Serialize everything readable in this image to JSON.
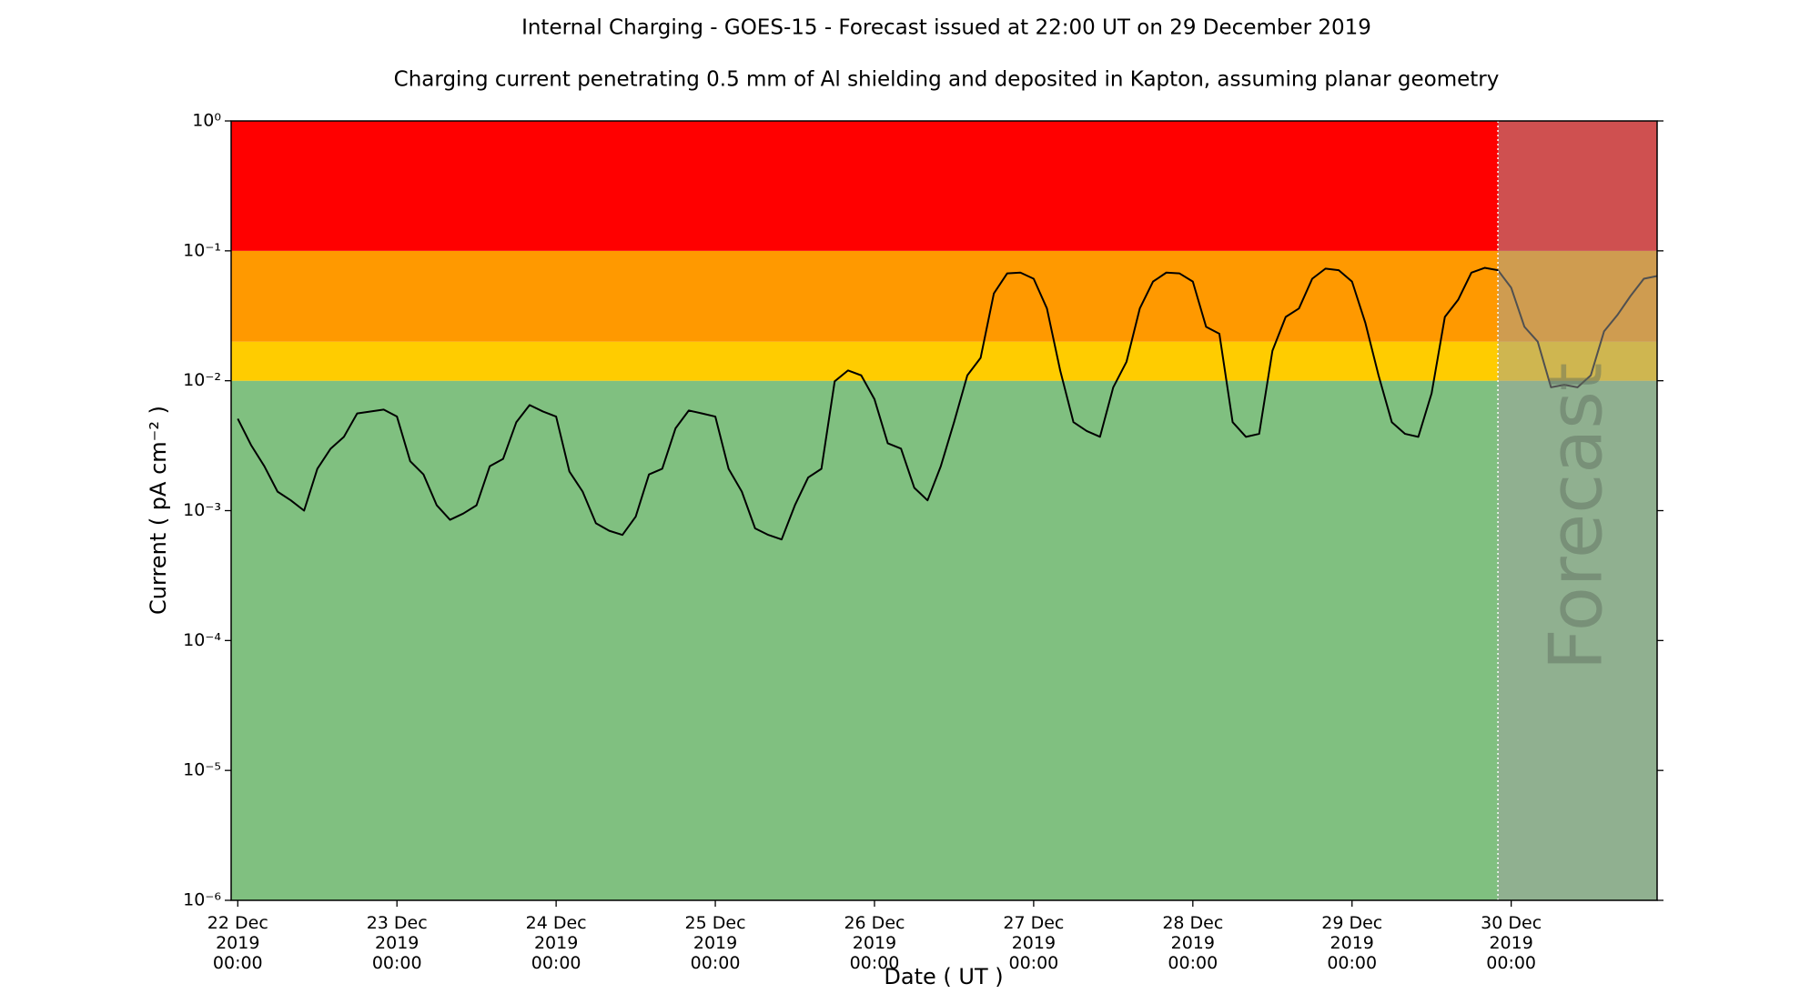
{
  "chart_data": {
    "type": "line",
    "title": "Internal Charging - GOES-15 - Forecast issued at 22:00 UT on 29 December 2019",
    "subtitle": "Charging current penetrating 0.5 mm of Al shielding and deposited in Kapton, assuming planar geometry",
    "xlabel": "Date ( UT )",
    "ylabel": "Current ( pA cm⁻² )",
    "log_y": true,
    "color": "#000000",
    "xlim": [
      "2019-12-21 23:00",
      "2019-12-30 22:00"
    ],
    "ylim": [
      1e-06,
      1
    ],
    "yticks": [
      {
        "value": 1e-06,
        "label": "10⁻⁶"
      },
      {
        "value": 1e-05,
        "label": "10⁻⁵"
      },
      {
        "value": 0.0001,
        "label": "10⁻⁴"
      },
      {
        "value": 0.001,
        "label": "10⁻³"
      },
      {
        "value": 0.01,
        "label": "10⁻²"
      },
      {
        "value": 0.1,
        "label": "10⁻¹"
      },
      {
        "value": 1,
        "label": "10⁰"
      }
    ],
    "xticks": [
      {
        "value": "2019-12-22 00:00",
        "label": "22 Dec\n2019\n00:00"
      },
      {
        "value": "2019-12-23 00:00",
        "label": "23 Dec\n2019\n00:00"
      },
      {
        "value": "2019-12-24 00:00",
        "label": "24 Dec\n2019\n00:00"
      },
      {
        "value": "2019-12-25 00:00",
        "label": "25 Dec\n2019\n00:00"
      },
      {
        "value": "2019-12-26 00:00",
        "label": "26 Dec\n2019\n00:00"
      },
      {
        "value": "2019-12-27 00:00",
        "label": "27 Dec\n2019\n00:00"
      },
      {
        "value": "2019-12-28 00:00",
        "label": "28 Dec\n2019\n00:00"
      },
      {
        "value": "2019-12-29 00:00",
        "label": "29 Dec\n2019\n00:00"
      },
      {
        "value": "2019-12-30 00:00",
        "label": "30 Dec\n2019\n00:00"
      }
    ],
    "bands": [
      {
        "from": 1e-06,
        "to": 0.01,
        "color": "#80c080"
      },
      {
        "from": 0.01,
        "to": 0.02,
        "color": "#ffcc00"
      },
      {
        "from": 0.02,
        "to": 0.1,
        "color": "#ff9900"
      },
      {
        "from": 0.1,
        "to": 1,
        "color": "#ff0000"
      }
    ],
    "forecast": {
      "label": "Forecast",
      "start": "2019-12-29 22:00",
      "color": "#a0a0a0"
    },
    "x": [
      "2019-12-22 00:00",
      "2019-12-22 02:00",
      "2019-12-22 04:00",
      "2019-12-22 06:00",
      "2019-12-22 08:00",
      "2019-12-22 10:00",
      "2019-12-22 12:00",
      "2019-12-22 14:00",
      "2019-12-22 16:00",
      "2019-12-22 18:00",
      "2019-12-22 20:00",
      "2019-12-22 22:00",
      "2019-12-23 00:00",
      "2019-12-23 02:00",
      "2019-12-23 04:00",
      "2019-12-23 06:00",
      "2019-12-23 08:00",
      "2019-12-23 10:00",
      "2019-12-23 12:00",
      "2019-12-23 14:00",
      "2019-12-23 16:00",
      "2019-12-23 18:00",
      "2019-12-23 20:00",
      "2019-12-23 22:00",
      "2019-12-24 00:00",
      "2019-12-24 02:00",
      "2019-12-24 04:00",
      "2019-12-24 06:00",
      "2019-12-24 08:00",
      "2019-12-24 10:00",
      "2019-12-24 12:00",
      "2019-12-24 14:00",
      "2019-12-24 16:00",
      "2019-12-24 18:00",
      "2019-12-24 20:00",
      "2019-12-24 22:00",
      "2019-12-25 00:00",
      "2019-12-25 02:00",
      "2019-12-25 04:00",
      "2019-12-25 06:00",
      "2019-12-25 08:00",
      "2019-12-25 10:00",
      "2019-12-25 12:00",
      "2019-12-25 14:00",
      "2019-12-25 16:00",
      "2019-12-25 18:00",
      "2019-12-25 20:00",
      "2019-12-25 22:00",
      "2019-12-26 00:00",
      "2019-12-26 02:00",
      "2019-12-26 04:00",
      "2019-12-26 06:00",
      "2019-12-26 08:00",
      "2019-12-26 10:00",
      "2019-12-26 12:00",
      "2019-12-26 14:00",
      "2019-12-26 16:00",
      "2019-12-26 18:00",
      "2019-12-26 20:00",
      "2019-12-26 22:00",
      "2019-12-27 00:00",
      "2019-12-27 02:00",
      "2019-12-27 04:00",
      "2019-12-27 06:00",
      "2019-12-27 08:00",
      "2019-12-27 10:00",
      "2019-12-27 12:00",
      "2019-12-27 14:00",
      "2019-12-27 16:00",
      "2019-12-27 18:00",
      "2019-12-27 20:00",
      "2019-12-27 22:00",
      "2019-12-28 00:00",
      "2019-12-28 02:00",
      "2019-12-28 04:00",
      "2019-12-28 06:00",
      "2019-12-28 08:00",
      "2019-12-28 10:00",
      "2019-12-28 12:00",
      "2019-12-28 14:00",
      "2019-12-28 16:00",
      "2019-12-28 18:00",
      "2019-12-28 20:00",
      "2019-12-28 22:00",
      "2019-12-29 00:00",
      "2019-12-29 02:00",
      "2019-12-29 04:00",
      "2019-12-29 06:00",
      "2019-12-29 08:00",
      "2019-12-29 10:00",
      "2019-12-29 12:00",
      "2019-12-29 14:00",
      "2019-12-29 16:00",
      "2019-12-29 18:00",
      "2019-12-29 20:00",
      "2019-12-29 22:00",
      "2019-12-30 00:00",
      "2019-12-30 02:00",
      "2019-12-30 04:00",
      "2019-12-30 06:00",
      "2019-12-30 08:00",
      "2019-12-30 10:00",
      "2019-12-30 12:00",
      "2019-12-30 14:00",
      "2019-12-30 16:00",
      "2019-12-30 18:00",
      "2019-12-30 20:00",
      "2019-12-30 22:00"
    ],
    "values": [
      0.0051,
      0.0032,
      0.0022,
      0.0014,
      0.0012,
      0.001,
      0.0021,
      0.003,
      0.0037,
      0.0056,
      0.0058,
      0.006,
      0.0053,
      0.0024,
      0.0019,
      0.0011,
      0.00085,
      0.00095,
      0.0011,
      0.0022,
      0.0025,
      0.0048,
      0.0065,
      0.0058,
      0.0053,
      0.002,
      0.0014,
      0.0008,
      0.0007,
      0.00065,
      0.0009,
      0.0019,
      0.0021,
      0.0043,
      0.0059,
      0.0056,
      0.0053,
      0.0021,
      0.0014,
      0.00073,
      0.00065,
      0.0006,
      0.0011,
      0.0018,
      0.0021,
      0.0099,
      0.012,
      0.011,
      0.0072,
      0.0033,
      0.003,
      0.0015,
      0.0012,
      0.0022,
      0.0048,
      0.011,
      0.015,
      0.047,
      0.067,
      0.068,
      0.061,
      0.036,
      0.012,
      0.0048,
      0.0041,
      0.0037,
      0.0089,
      0.014,
      0.036,
      0.058,
      0.068,
      0.067,
      0.058,
      0.026,
      0.023,
      0.0048,
      0.0037,
      0.0039,
      0.017,
      0.031,
      0.036,
      0.061,
      0.073,
      0.071,
      0.058,
      0.028,
      0.011,
      0.0048,
      0.0039,
      0.0037,
      0.008,
      0.031,
      0.042,
      0.068,
      0.074,
      0.071,
      0.052,
      0.026,
      0.02,
      0.0089,
      0.0093,
      0.0089,
      0.011,
      0.024,
      0.032,
      0.045,
      0.061,
      0.064
    ]
  }
}
